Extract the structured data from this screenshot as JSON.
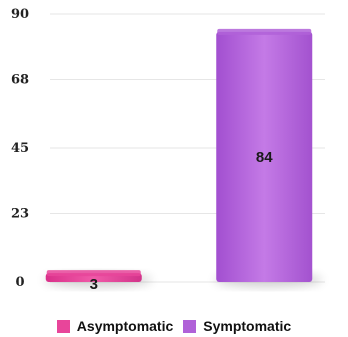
{
  "chart_data": {
    "type": "bar",
    "categories": [
      "Asymptomatic",
      "Symptomatic"
    ],
    "values": [
      3,
      84
    ],
    "data_labels": [
      "3",
      "84"
    ],
    "colors": [
      "#e8459a",
      "#b061d8"
    ],
    "yticks": [
      "0",
      "23",
      "45",
      "68",
      "90"
    ],
    "ylim": [
      0,
      90
    ],
    "grid": true,
    "legend": "bottom",
    "title": "",
    "xlabel": "",
    "ylabel": ""
  }
}
